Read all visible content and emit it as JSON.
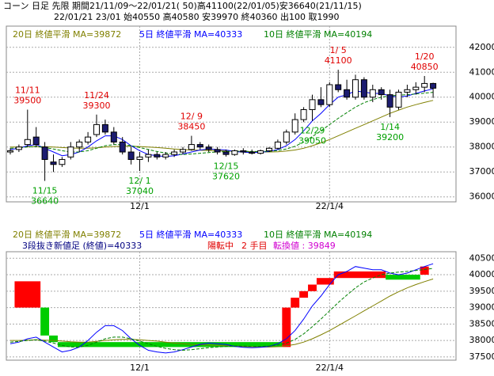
{
  "header": {
    "line1": "コーン 日足 先限 期間21/11/09～22/01/21( 50)高41100(22/01/05)安36640(21/11/15)",
    "line2": "22/01/21 23/01 始40550 高40580 安39970 終40360 出100 取1990"
  },
  "chart_data": [
    {
      "type": "candlestick",
      "categories": [
        null,
        null,
        null,
        null,
        null,
        null,
        null,
        null,
        null,
        null,
        null,
        null,
        null,
        null,
        null,
        "12/1",
        null,
        null,
        null,
        null,
        null,
        null,
        null,
        null,
        null,
        null,
        null,
        null,
        null,
        null,
        null,
        null,
        null,
        null,
        null,
        null,
        null,
        "22/1/4",
        null,
        null,
        null,
        null,
        null,
        null,
        null,
        null,
        null,
        null,
        null,
        null
      ],
      "open": [
        37800,
        37900,
        38100,
        38400,
        38000,
        37400,
        37300,
        37600,
        38000,
        38200,
        38500,
        38900,
        38600,
        38200,
        37800,
        37500,
        37600,
        37700,
        37600,
        37700,
        37800,
        37900,
        38100,
        38000,
        37900,
        37800,
        37700,
        37850,
        37800,
        37750,
        37850,
        37950,
        38200,
        38600,
        39100,
        39500,
        39900,
        39700,
        40500,
        40300,
        40000,
        40700,
        40000,
        40300,
        40100,
        39600,
        40200,
        40300,
        40400,
        40550
      ],
      "high": [
        37950,
        38100,
        39500,
        38800,
        38200,
        37700,
        37600,
        38200,
        38300,
        38600,
        39300,
        39100,
        38800,
        38400,
        38000,
        37800,
        37900,
        37800,
        37800,
        37900,
        38000,
        38450,
        38200,
        38100,
        38000,
        37900,
        37900,
        37950,
        37900,
        37900,
        38000,
        38300,
        38700,
        39350,
        39600,
        40100,
        40400,
        40600,
        41100,
        40700,
        40900,
        40800,
        40500,
        40400,
        40300,
        40300,
        40500,
        40600,
        40850,
        40580
      ],
      "low": [
        37700,
        37800,
        38000,
        38000,
        36640,
        37000,
        37200,
        37500,
        37800,
        38100,
        38400,
        38500,
        38100,
        37700,
        37300,
        37040,
        37400,
        37500,
        37500,
        37600,
        37700,
        37850,
        37900,
        37800,
        37700,
        37620,
        37650,
        37700,
        37700,
        37700,
        37800,
        37900,
        38100,
        38500,
        39000,
        39050,
        39600,
        39600,
        40200,
        39900,
        39900,
        39900,
        39800,
        39900,
        39200,
        39500,
        40000,
        40100,
        40200,
        39970
      ],
      "close": [
        37850,
        38000,
        38300,
        38100,
        37500,
        37300,
        37500,
        38000,
        38200,
        38400,
        38900,
        38600,
        38200,
        37800,
        37500,
        37600,
        37700,
        37600,
        37700,
        37800,
        37900,
        38100,
        38000,
        37900,
        37800,
        37700,
        37850,
        37800,
        37750,
        37850,
        37950,
        38200,
        38600,
        39100,
        39500,
        39900,
        39700,
        40500,
        40300,
        40000,
        40700,
        40000,
        40300,
        40100,
        39600,
        40200,
        40300,
        40400,
        40550,
        40360
      ],
      "up_color": "#ffffff",
      "down_color": "#1c1c70",
      "series": [
        {
          "name": "20日 終値平滑 MA=39872",
          "color": "#808000",
          "dash": false,
          "values": [
            38000,
            38000,
            38010,
            38020,
            38010,
            38000,
            37980,
            37960,
            37950,
            37950,
            37970,
            38000,
            38020,
            38030,
            38030,
            38020,
            38000,
            37980,
            37950,
            37920,
            37900,
            37880,
            37870,
            37860,
            37850,
            37840,
            37830,
            37820,
            37810,
            37800,
            37800,
            37810,
            37840,
            37880,
            37950,
            38050,
            38170,
            38300,
            38450,
            38600,
            38750,
            38900,
            39050,
            39200,
            39350,
            39480,
            39600,
            39700,
            39790,
            39872
          ]
        },
        {
          "name": "5日 終値平滑 MA=40333",
          "color": "#0000ff",
          "dash": false,
          "values": [
            37900,
            37950,
            38050,
            38100,
            37950,
            37800,
            37650,
            37700,
            37800,
            38000,
            38250,
            38450,
            38450,
            38300,
            38050,
            37850,
            37700,
            37650,
            37620,
            37650,
            37720,
            37800,
            37880,
            37920,
            37900,
            37880,
            37820,
            37790,
            37780,
            37790,
            37820,
            37900,
            38050,
            38300,
            38650,
            39050,
            39350,
            39700,
            40000,
            40100,
            40250,
            40200,
            40150,
            40150,
            40050,
            40000,
            40050,
            40150,
            40250,
            40333
          ]
        },
        {
          "name": "10日 終値平滑 MA=40194",
          "color": "#008000",
          "dash": true,
          "values": [
            37950,
            37970,
            38000,
            38020,
            37980,
            37920,
            37850,
            37800,
            37800,
            37850,
            37950,
            38050,
            38100,
            38100,
            38050,
            37980,
            37900,
            37820,
            37760,
            37720,
            37700,
            37720,
            37750,
            37780,
            37800,
            37820,
            37830,
            37830,
            37820,
            37820,
            37830,
            37860,
            37920,
            38030,
            38200,
            38420,
            38650,
            38900,
            39150,
            39380,
            39600,
            39780,
            39900,
            40000,
            40050,
            40080,
            40100,
            40130,
            40160,
            40194
          ]
        }
      ],
      "high_labels": [
        {
          "date": "11/11",
          "value": 39500
        },
        {
          "date": "11/24",
          "value": 39300
        },
        {
          "date": "12/ 9",
          "value": 38450
        },
        {
          "date": "1/ 5",
          "value": 41100
        },
        {
          "date": "1/20",
          "value": 40850
        }
      ],
      "low_labels": [
        {
          "date": "11/15",
          "value": 36640
        },
        {
          "date": "12/ 1",
          "value": 37040
        },
        {
          "date": "12/15",
          "value": 37620
        },
        {
          "date": "12/29",
          "value": 39050
        },
        {
          "date": "1/14",
          "value": 39200
        }
      ],
      "high_color": "#e00000",
      "low_color": "#00a000",
      "ylim": [
        35800,
        42850
      ],
      "yticks": [
        36000,
        37000,
        38000,
        39000,
        40000,
        41000,
        42000
      ],
      "grid": true
    },
    {
      "type": "three_line_break",
      "series": [
        {
          "name": "20日 終値平滑 MA=39872",
          "color": "#808000",
          "dash": false
        },
        {
          "name": "5日 終値平滑 MA=40333",
          "color": "#0000ff",
          "dash": false
        },
        {
          "name": "10日 終値平滑 MA=40194",
          "color": "#008000",
          "dash": true
        }
      ],
      "annotations": [
        {
          "text": "3段抜き新値足 (終値)=40333",
          "color": "#000080"
        },
        {
          "text": "陽転中",
          "color": "#e00000"
        },
        {
          "text": "2 手目",
          "color": "#e00000"
        },
        {
          "text": "転換値 : 39849",
          "color": "#d000d0"
        }
      ],
      "bricks": [
        {
          "start": 0,
          "end": 3,
          "from": 39000,
          "to": 39800
        },
        {
          "start": 3,
          "end": 4,
          "from": 39000,
          "to": 38150
        },
        {
          "start": 4,
          "end": 5,
          "from": 38150,
          "to": 37950
        },
        {
          "start": 5,
          "end": 31,
          "from": 37950,
          "to": 37800
        },
        {
          "start": 31,
          "end": 32,
          "from": 37800,
          "to": 39000
        },
        {
          "start": 32,
          "end": 33,
          "from": 39000,
          "to": 39300
        },
        {
          "start": 33,
          "end": 34,
          "from": 39300,
          "to": 39500
        },
        {
          "start": 34,
          "end": 35,
          "from": 39500,
          "to": 39700
        },
        {
          "start": 35,
          "end": 37,
          "from": 39700,
          "to": 39900
        },
        {
          "start": 37,
          "end": 43,
          "from": 39900,
          "to": 40100
        },
        {
          "start": 43,
          "end": 47,
          "from": 40000,
          "to": 39850
        },
        {
          "start": 47,
          "end": 48,
          "from": 40000,
          "to": 40250
        }
      ],
      "up_color": "#ff0000",
      "down_color": "#00cc00",
      "ylim": [
        37400,
        40700
      ],
      "yticks": [
        37500,
        38000,
        38500,
        39000,
        39500,
        40000,
        40500
      ],
      "grid": true
    }
  ]
}
